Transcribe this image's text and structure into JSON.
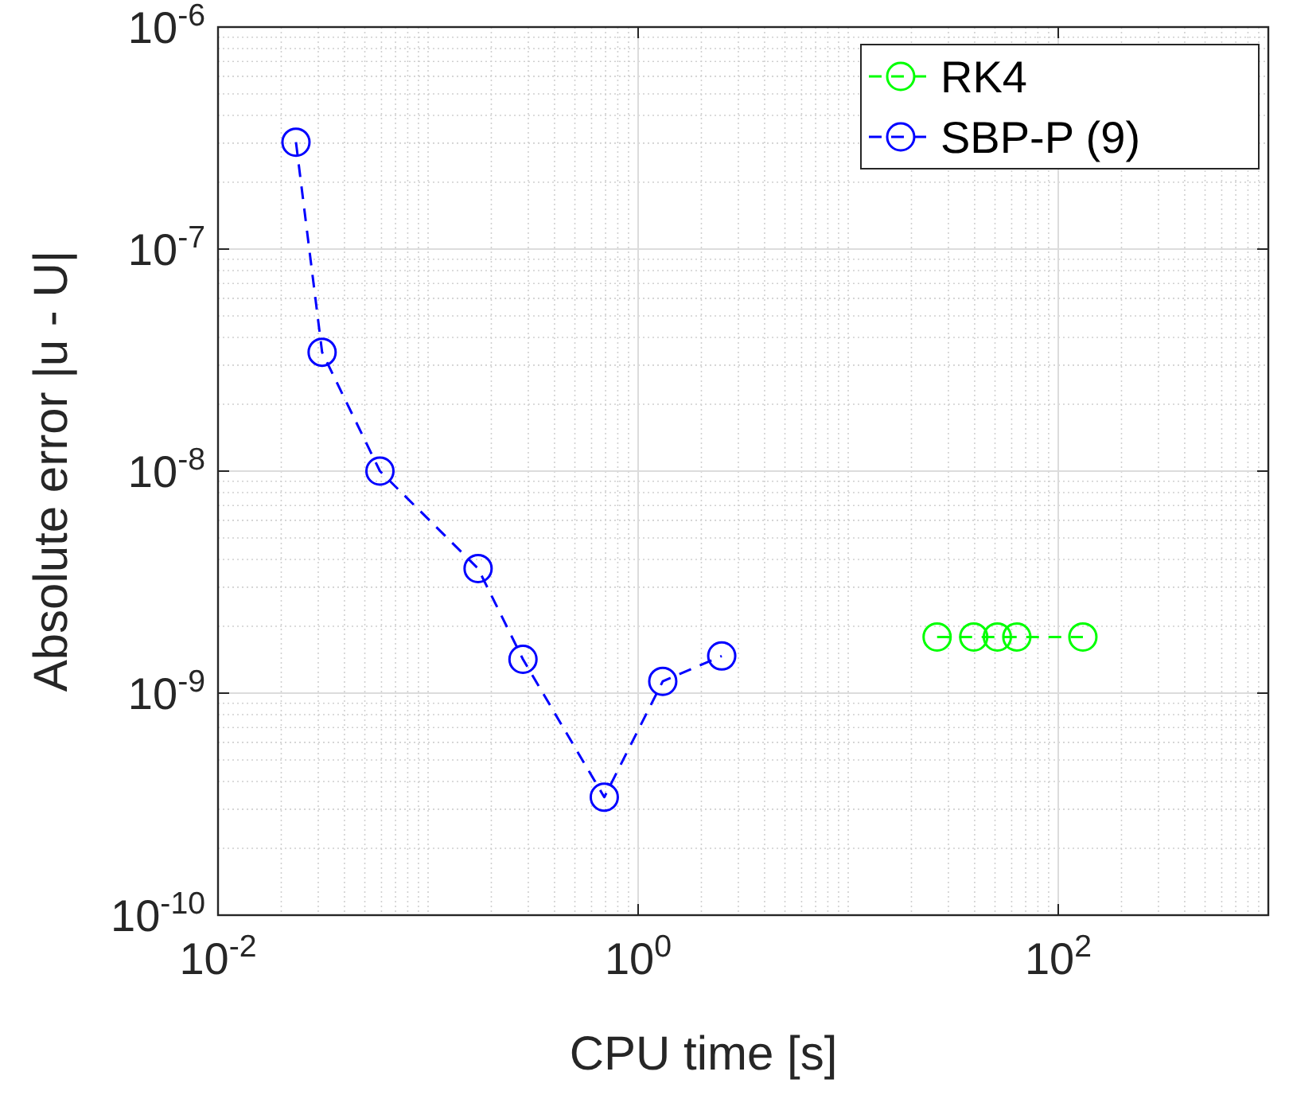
{
  "chart_data": {
    "type": "line",
    "xlabel": "CPU time [s]",
    "ylabel": "Absolute error |u - U|",
    "log": "xy",
    "grid": true,
    "legend": "top right",
    "marker": "circle",
    "line_style": "dashed",
    "xlim": [
      0.01,
      1000
    ],
    "xticks": [
      {
        "value": 0.01,
        "label": "10$^{-2}$"
      },
      {
        "value": 1,
        "label": "10$^{0}$"
      },
      {
        "value": 100,
        "label": "10$^{2}$"
      }
    ],
    "ylim": [
      1e-10,
      1e-06
    ],
    "yticks": [
      {
        "value": 1e-10,
        "label": "10$^{-10}$"
      },
      {
        "value": 1e-09,
        "label": "10$^{-9}$"
      },
      {
        "value": 1e-08,
        "label": "10$^{-8}$"
      },
      {
        "value": 1e-07,
        "label": "10$^{-7}$"
      },
      {
        "value": 1e-06,
        "label": "10$^{-6}$"
      }
    ],
    "series": [
      {
        "name": "RK4",
        "color": "#00ff00",
        "x": [
          26.5,
          39.6,
          51.3,
          63.5,
          131
        ],
        "values": [
          1.79e-09,
          1.79e-09,
          1.79e-09,
          1.79e-09,
          1.79e-09
        ]
      },
      {
        "name": "SBP-P (9)",
        "color": "#0000ff",
        "x": [
          0.0235,
          0.0313,
          0.059,
          0.173,
          0.283,
          0.69,
          1.31,
          2.5
        ],
        "values": [
          3.03e-07,
          3.43e-08,
          1e-08,
          3.64e-09,
          1.42e-09,
          3.4e-10,
          1.13e-09,
          1.47e-09
        ]
      }
    ]
  }
}
